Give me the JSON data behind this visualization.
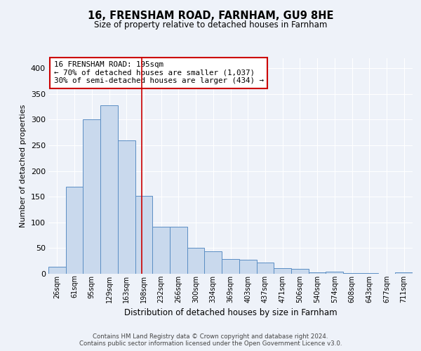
{
  "title1": "16, FRENSHAM ROAD, FARNHAM, GU9 8HE",
  "title2": "Size of property relative to detached houses in Farnham",
  "xlabel": "Distribution of detached houses by size in Farnham",
  "ylabel": "Number of detached properties",
  "bin_labels": [
    "26sqm",
    "61sqm",
    "95sqm",
    "129sqm",
    "163sqm",
    "198sqm",
    "232sqm",
    "266sqm",
    "300sqm",
    "334sqm",
    "369sqm",
    "403sqm",
    "437sqm",
    "471sqm",
    "506sqm",
    "540sqm",
    "574sqm",
    "608sqm",
    "643sqm",
    "677sqm",
    "711sqm"
  ],
  "bar_heights": [
    13,
    170,
    301,
    328,
    259,
    152,
    91,
    91,
    50,
    44,
    29,
    28,
    22,
    11,
    10,
    3,
    4,
    1,
    1,
    0,
    3
  ],
  "bar_color": "#c9d9ed",
  "bar_edge_color": "#5b8ec4",
  "property_line_x": 4.87,
  "annotation_text": "16 FRENSHAM ROAD: 195sqm\n← 70% of detached houses are smaller (1,037)\n30% of semi-detached houses are larger (434) →",
  "annotation_box_color": "#ffffff",
  "annotation_box_edge_color": "#cc0000",
  "vline_color": "#cc0000",
  "ylim": [
    0,
    420
  ],
  "yticks": [
    0,
    50,
    100,
    150,
    200,
    250,
    300,
    350,
    400
  ],
  "footer_text": "Contains HM Land Registry data © Crown copyright and database right 2024.\nContains public sector information licensed under the Open Government Licence v3.0.",
  "bg_color": "#eef2f9",
  "grid_color": "#ffffff"
}
